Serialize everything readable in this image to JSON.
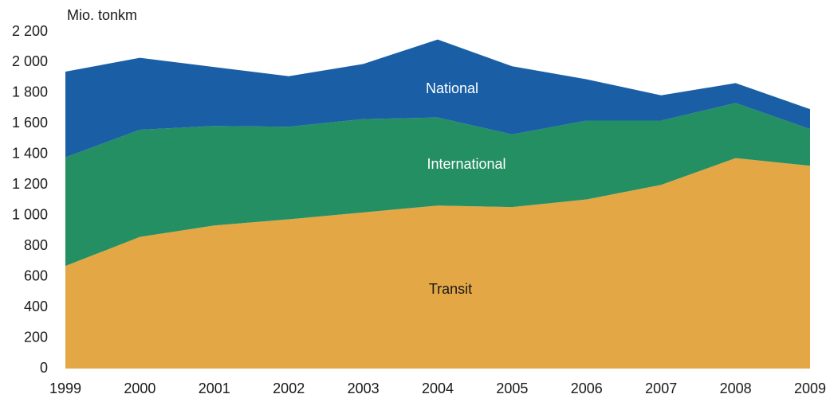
{
  "chart_data": {
    "type": "stacked_area",
    "y_axis_label": "Mio. tonkm",
    "categories": [
      "1999",
      "2000",
      "2001",
      "2002",
      "2003",
      "2004",
      "2005",
      "2006",
      "2007",
      "2008",
      "2009"
    ],
    "series": [
      {
        "name": "Transit",
        "color": "#e3a745",
        "values": [
          670,
          860,
          935,
          975,
          1020,
          1065,
          1055,
          1105,
          1200,
          1375,
          1325
        ]
      },
      {
        "name": "International",
        "color": "#248f63",
        "values": [
          710,
          700,
          650,
          605,
          610,
          575,
          475,
          515,
          420,
          360,
          240
        ]
      },
      {
        "name": "National",
        "color": "#1a5fa6",
        "values": [
          560,
          470,
          385,
          330,
          360,
          510,
          445,
          270,
          165,
          130,
          130
        ]
      }
    ],
    "ylim": [
      0,
      2200
    ],
    "yticks": [
      0,
      200,
      400,
      600,
      800,
      {
        "value": 1000,
        "label": "1 000"
      },
      {
        "value": 1200,
        "label": "1 200"
      },
      {
        "value": 1400,
        "label": "1 400"
      },
      {
        "value": 1600,
        "label": "1 600"
      },
      {
        "value": 1800,
        "label": "1 800"
      },
      {
        "value": 2000,
        "label": "2 000"
      },
      {
        "value": 2200,
        "label": "2 200"
      }
    ],
    "grid": false
  }
}
